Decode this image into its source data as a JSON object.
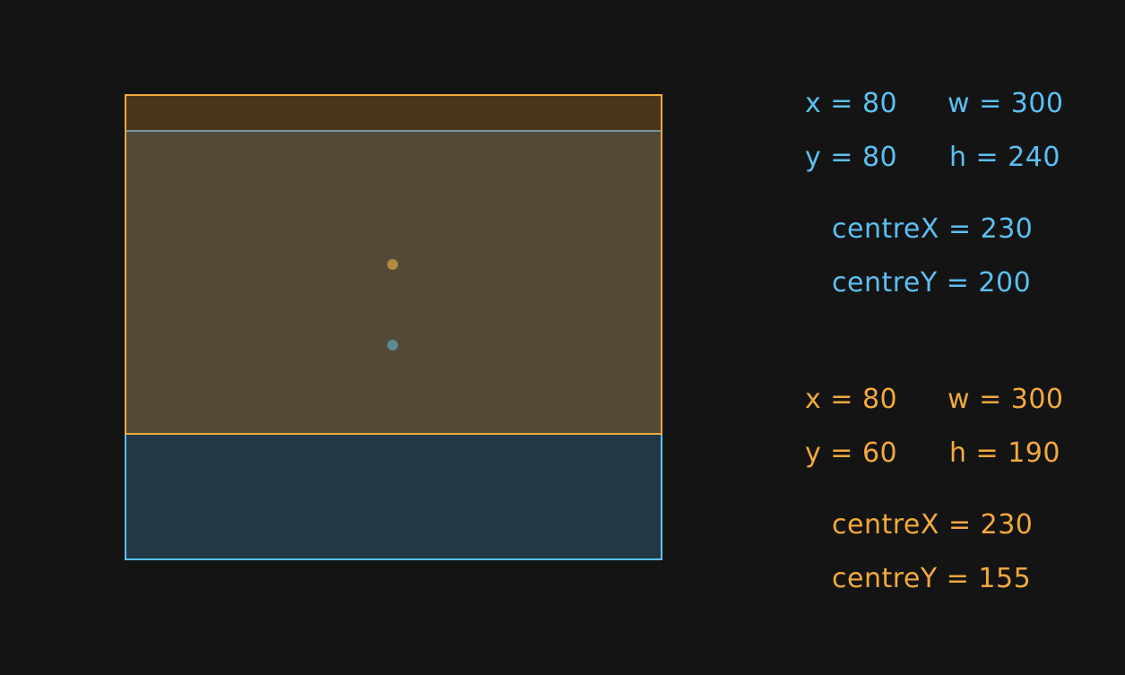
{
  "colors": {
    "background": "#141414",
    "blue": "#5bc0f2",
    "orange": "#f2a93b"
  },
  "blue_rect": {
    "x_label": "x = 80",
    "w_label": "w = 300",
    "y_label": "y = 80",
    "h_label": "h = 240",
    "centre_x_label": "centreX = 230",
    "centre_y_label": "centreY = 200",
    "centre_dot_color": "#5f8b96"
  },
  "orange_rect": {
    "x_label": "x = 80",
    "w_label": "w = 300",
    "y_label": "y = 60",
    "h_label": "h = 190",
    "centre_x_label": "centreX = 230",
    "centre_y_label": "centreY = 155",
    "centre_dot_color": "#b38a40"
  }
}
